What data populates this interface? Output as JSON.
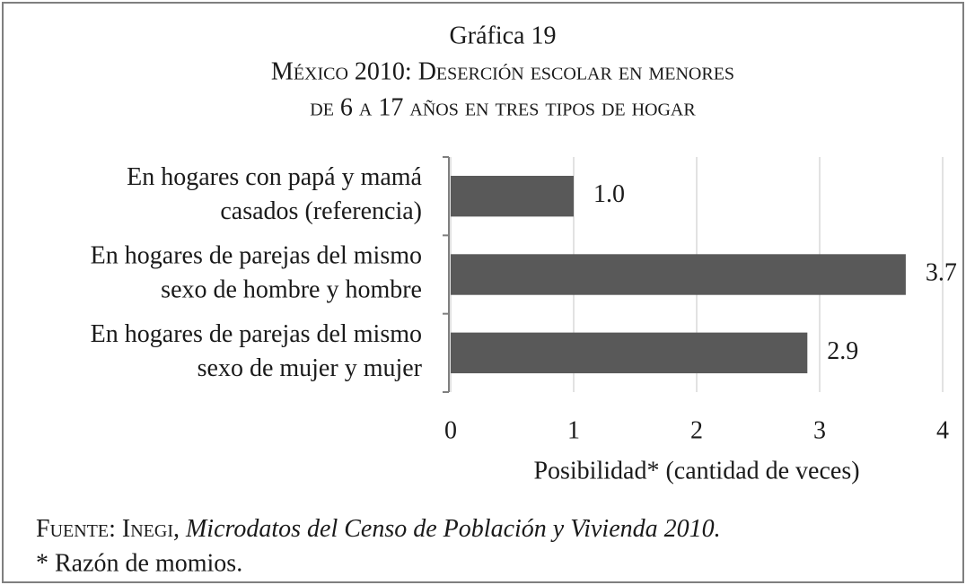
{
  "chart_data": {
    "type": "bar",
    "orientation": "horizontal",
    "title": "Gráfica 19",
    "subtitle": [
      "México 2010: Deserción escolar en menores",
      "de 6 a 17 años en tres tipos de hogar"
    ],
    "categories": [
      [
        "En hogares con papá y mamá",
        "casados (referencia)"
      ],
      [
        "En hogares de parejas del mismo",
        "sexo de hombre y hombre"
      ],
      [
        "En hogares de parejas del mismo",
        "sexo de mujer y mujer"
      ]
    ],
    "values": [
      1,
      3.7,
      2.9
    ],
    "value_labels": [
      "1.0",
      "3.7",
      "2.9"
    ],
    "color": "#595959",
    "xlim": [
      0,
      4
    ],
    "xticks": [
      0,
      1,
      2,
      3,
      4
    ],
    "xlabel": "Posibilidad* (cantidad de veces)",
    "grid": true,
    "source": [
      "Fuente: Inegi,",
      "Microdatos del Censo de Población y Vivienda 2010."
    ],
    "note": "* Razón de momios."
  }
}
